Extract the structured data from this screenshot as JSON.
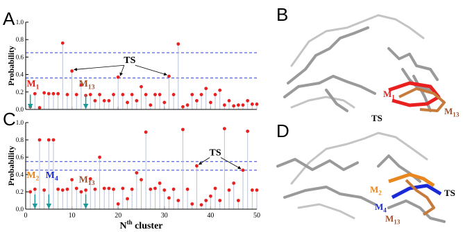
{
  "chart_data": [
    {
      "type": "stem",
      "panel_label": "A",
      "ylabel": "Probability",
      "x": [
        1,
        2,
        3,
        4,
        5,
        6,
        7,
        8,
        9,
        10,
        11,
        12,
        13,
        14,
        15,
        16,
        17,
        18,
        19,
        20,
        21,
        22,
        23,
        24,
        25,
        26,
        27,
        28,
        29,
        30,
        31,
        32,
        33,
        34,
        35,
        36,
        37,
        38,
        39,
        40,
        41,
        42,
        43,
        44,
        45,
        46,
        47,
        48,
        49,
        50
      ],
      "values": [
        0.03,
        0.18,
        0.02,
        0.19,
        0.18,
        0.18,
        0.18,
        0.76,
        0.17,
        0.44,
        0.17,
        0.28,
        0.16,
        0.17,
        0.1,
        0.17,
        0.1,
        0.1,
        0.17,
        0.37,
        0.17,
        0.08,
        0.17,
        0.1,
        0.26,
        0.17,
        0.05,
        0.17,
        0.17,
        0.08,
        0.38,
        0.17,
        0.75,
        0.03,
        0.05,
        0.17,
        0.1,
        0.17,
        0.24,
        0.08,
        0.17,
        0.22,
        0.05,
        0.1,
        0.04,
        0.05,
        0.05,
        0.1,
        0.06,
        0.06
      ],
      "color": "#e8201f",
      "stem_color": "#b9c3d8",
      "xlim": [
        0,
        50
      ],
      "xticks": [
        0,
        10,
        20,
        30,
        40,
        50
      ],
      "show_xtick_labels": false,
      "ylim": [
        0,
        1
      ],
      "yticks": [
        {
          "value": 0,
          "label": "0.0"
        },
        0.2,
        0.4,
        0.6,
        0.8,
        {
          "value": 1,
          "label": "1.0"
        }
      ],
      "reference_lines": [
        0.65,
        0.36
      ],
      "reference_color": "#2b3fd6",
      "annotations": [
        {
          "text": "TS"
        },
        {
          "text": "M",
          "sub": "1",
          "color": "#e8201f"
        },
        {
          "text": "M",
          "sub": "13",
          "color": "#a0522d"
        }
      ]
    },
    {
      "type": "stem",
      "panel_label": "C",
      "ylabel": "Probability",
      "xlabel": {
        "text": "N",
        "sup": "th",
        "rest": " cluster"
      },
      "x": [
        1,
        2,
        3,
        4,
        5,
        6,
        7,
        8,
        9,
        10,
        11,
        12,
        13,
        14,
        15,
        16,
        17,
        18,
        19,
        20,
        21,
        22,
        23,
        24,
        25,
        26,
        27,
        28,
        29,
        30,
        31,
        32,
        33,
        34,
        35,
        36,
        37,
        38,
        39,
        40,
        41,
        42,
        43,
        44,
        45,
        46,
        47,
        48,
        49,
        50
      ],
      "values": [
        0.2,
        0.23,
        0.8,
        0.22,
        0.8,
        0.8,
        0.23,
        0.22,
        0.23,
        0.34,
        0.24,
        0.2,
        0.22,
        0.35,
        0.23,
        0.6,
        0.24,
        0.24,
        0.23,
        0.06,
        0.24,
        0.12,
        0.23,
        0.42,
        0.34,
        0.89,
        0.23,
        0.24,
        0.3,
        0.22,
        0.13,
        0.23,
        0.1,
        0.92,
        0.23,
        0.06,
        0.5,
        0.05,
        0.1,
        0.15,
        0.24,
        0.1,
        0.93,
        0.22,
        0.3,
        0.1,
        0.45,
        0.9,
        0.22,
        0.22
      ],
      "color": "#e8201f",
      "stem_color": "#b9c3d8",
      "xlim": [
        0,
        50
      ],
      "xticks": [
        0,
        10,
        20,
        30,
        40,
        50
      ],
      "show_xtick_labels": true,
      "ylim": [
        0,
        1
      ],
      "yticks": [
        {
          "value": 0,
          "label": "0.0"
        },
        0.2,
        0.4,
        0.6,
        0.8,
        {
          "value": 1,
          "label": "1.0"
        }
      ],
      "reference_lines": [
        0.55,
        0.45
      ],
      "reference_color": "#2b3fd6",
      "annotations": [
        {
          "text": "TS"
        },
        {
          "text": "M",
          "sub": "2",
          "color": "#e8861f"
        },
        {
          "text": "M",
          "sub": "4",
          "color": "#1a2ad6"
        },
        {
          "text": "M",
          "sub": "13",
          "color": "#a0522d"
        }
      ]
    }
  ],
  "structures": [
    {
      "panel_label": "B",
      "labels": [
        {
          "text": "M",
          "sub": "1",
          "color": "#e8201f"
        },
        {
          "text": "TS"
        },
        {
          "text": "M",
          "sub": "13",
          "color": "#a0522d"
        }
      ]
    },
    {
      "panel_label": "D",
      "labels": [
        {
          "text": "M",
          "sub": "2",
          "color": "#e8861f"
        },
        {
          "text": "M",
          "sub": "4",
          "color": "#1a2ad6"
        },
        {
          "text": "M",
          "sub": "13",
          "color": "#a0522d"
        },
        {
          "text": "TS"
        }
      ]
    }
  ]
}
